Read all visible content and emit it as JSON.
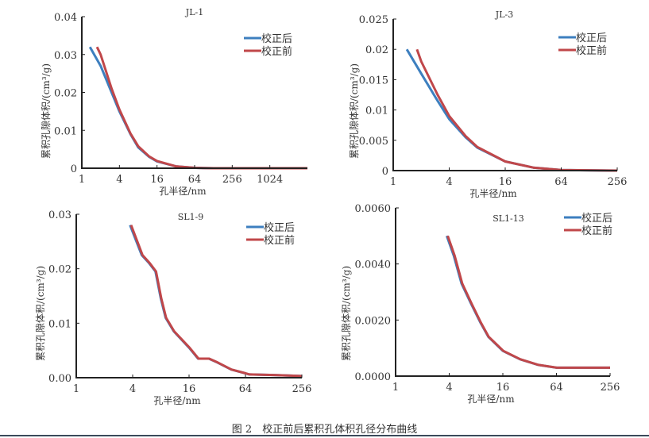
{
  "caption": "图 2　校正前后累积孔体积孔径分布曲线",
  "chart_data": [
    {
      "type": "line",
      "title": "JL-1",
      "xlabel": "孔半径/nm",
      "ylabel": "累积孔隙体积/(cm³/g)",
      "xscale": "log2",
      "xlim": [
        1,
        4096
      ],
      "ylim": [
        0,
        0.04
      ],
      "xticks": [
        "1",
        "4",
        "16",
        "64",
        "256",
        "1024"
      ],
      "xtick_values": [
        1,
        4,
        16,
        64,
        256,
        1024
      ],
      "yticks": [
        "0",
        "0.01",
        "0.02",
        "0.03",
        "0.04"
      ],
      "ytick_values": [
        0,
        0.01,
        0.02,
        0.03,
        0.04
      ],
      "legend": "top-right",
      "series": [
        {
          "name": "校正后",
          "color": "#3d7fbf",
          "x": [
            1.35,
            2,
            3,
            4,
            6,
            8,
            12,
            16,
            32,
            64,
            128,
            4096
          ],
          "y": [
            0.032,
            0.027,
            0.02,
            0.015,
            0.009,
            0.0055,
            0.003,
            0.0018,
            0.0005,
            0.0001,
            0,
            0
          ]
        },
        {
          "name": "校正前",
          "color": "#c0474a",
          "x": [
            1.75,
            2,
            3,
            4,
            6,
            8,
            12,
            16,
            32,
            64,
            128,
            4096
          ],
          "y": [
            0.032,
            0.03,
            0.021,
            0.0155,
            0.0092,
            0.0058,
            0.0031,
            0.0019,
            0.0005,
            0.0001,
            0,
            0
          ]
        }
      ]
    },
    {
      "type": "line",
      "title": "JL-3",
      "xlabel": "孔半径/nm",
      "ylabel": "累积孔隙体积/(cm³/g)",
      "xscale": "log2",
      "xlim": [
        1,
        256
      ],
      "ylim": [
        0,
        0.025
      ],
      "xticks": [
        "1",
        "4",
        "16",
        "64",
        "256"
      ],
      "xtick_values": [
        1,
        4,
        16,
        64,
        256
      ],
      "yticks": [
        "0",
        "0.005",
        "0.01",
        "0.015",
        "0.02",
        "0.025"
      ],
      "ytick_values": [
        0,
        0.005,
        0.01,
        0.015,
        0.02,
        0.025
      ],
      "legend": "top-right",
      "series": [
        {
          "name": "校正后",
          "color": "#3d7fbf",
          "x": [
            1.4,
            2,
            3,
            4,
            6,
            8,
            16,
            32,
            64,
            256
          ],
          "y": [
            0.02,
            0.016,
            0.0115,
            0.0085,
            0.0055,
            0.0038,
            0.0015,
            0.0005,
            0.0001,
            0
          ]
        },
        {
          "name": "校正前",
          "color": "#c0474a",
          "x": [
            1.8,
            2,
            3,
            4,
            6,
            8,
            16,
            32,
            64,
            256
          ],
          "y": [
            0.02,
            0.018,
            0.0125,
            0.009,
            0.0057,
            0.0039,
            0.0015,
            0.0005,
            0.0001,
            0
          ]
        }
      ]
    },
    {
      "type": "line",
      "title": "SL1-9",
      "xlabel": "孔半径/nm",
      "ylabel": "累积孔隙体积/(cm³/g)",
      "xscale": "log2",
      "xlim": [
        1,
        256
      ],
      "ylim": [
        0,
        0.03
      ],
      "xticks": [
        "1",
        "4",
        "16",
        "64",
        "256"
      ],
      "xtick_values": [
        1,
        4,
        16,
        64,
        256
      ],
      "yticks": [
        "0.00",
        "0.01",
        "0.02",
        "0.03"
      ],
      "ytick_values": [
        0,
        0.01,
        0.02,
        0.03
      ],
      "legend": "top-right",
      "series": [
        {
          "name": "校正后",
          "color": "#3d7fbf",
          "x": [
            3.75,
            5,
            6,
            7,
            8,
            9,
            11,
            16,
            20,
            26,
            32,
            45,
            64,
            70,
            128,
            256
          ],
          "y": [
            0.028,
            0.0225,
            0.021,
            0.0195,
            0.0145,
            0.011,
            0.0085,
            0.0055,
            0.0035,
            0.0035,
            0.0028,
            0.0015,
            0.0008,
            0.0006,
            0.0005,
            0.0003
          ]
        },
        {
          "name": "校正前",
          "color": "#c0474a",
          "x": [
            3.85,
            5.1,
            6.1,
            7.1,
            8.1,
            9.1,
            11.1,
            16.2,
            20.2,
            26.2,
            32.3,
            45.3,
            64.5,
            70.5,
            128,
            256
          ],
          "y": [
            0.028,
            0.0225,
            0.021,
            0.0195,
            0.0145,
            0.011,
            0.0085,
            0.0055,
            0.0035,
            0.0035,
            0.0028,
            0.0015,
            0.0008,
            0.0006,
            0.0005,
            0.0003
          ]
        }
      ]
    },
    {
      "type": "line",
      "title": "SL1-13",
      "xlabel": "孔半径/nm",
      "ylabel": "累积孔隙体积/(cm³/g)",
      "xscale": "log2",
      "xlim": [
        1,
        256
      ],
      "ylim": [
        0,
        0.006
      ],
      "xticks": [
        "1",
        "4",
        "16",
        "64",
        "256"
      ],
      "xtick_values": [
        1,
        4,
        16,
        64,
        256
      ],
      "yticks": [
        "0.0000",
        "0.0020",
        "0.0040",
        "0.0060"
      ],
      "ytick_values": [
        0,
        0.002,
        0.004,
        0.006
      ],
      "legend": "top-right",
      "series": [
        {
          "name": "校正后",
          "color": "#3d7fbf",
          "x": [
            3.75,
            4.5,
            5.5,
            7,
            9,
            11,
            16,
            25,
            40,
            64,
            256
          ],
          "y": [
            0.005,
            0.0043,
            0.0033,
            0.0026,
            0.0019,
            0.0014,
            0.0009,
            0.0006,
            0.0004,
            0.0003,
            0.0003
          ]
        },
        {
          "name": "校正前",
          "color": "#c0474a",
          "x": [
            3.85,
            4.6,
            5.6,
            7.1,
            9.1,
            11.1,
            16.2,
            25.2,
            40.3,
            64.5,
            256
          ],
          "y": [
            0.005,
            0.0043,
            0.0033,
            0.0026,
            0.0019,
            0.0014,
            0.0009,
            0.0006,
            0.0004,
            0.0003,
            0.0003
          ]
        }
      ]
    }
  ]
}
